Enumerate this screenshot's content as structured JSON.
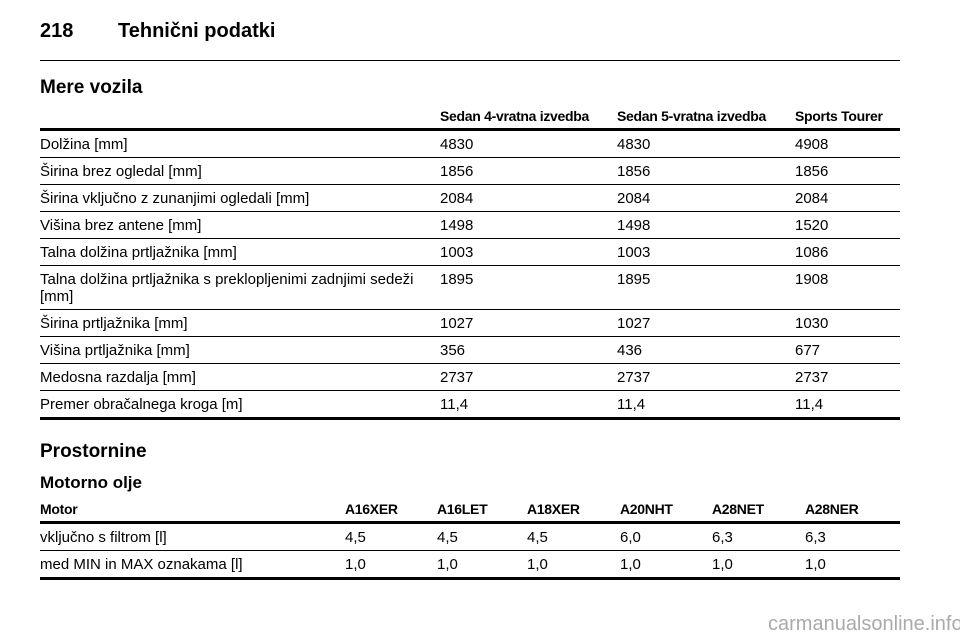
{
  "header": {
    "page_number": "218",
    "title": "Tehnični podatki"
  },
  "vehicle_dimensions": {
    "title": "Mere vozila",
    "columns": [
      "Sedan 4-vratna izvedba",
      "Sedan 5-vratna izvedba",
      "Sports Tourer"
    ],
    "rows": [
      {
        "label": "Dolžina [mm]",
        "values": [
          "4830",
          "4830",
          "4908"
        ]
      },
      {
        "label": "Širina brez ogledal [mm]",
        "values": [
          "1856",
          "1856",
          "1856"
        ]
      },
      {
        "label": "Širina vključno z zunanjimi ogledali [mm]",
        "values": [
          "2084",
          "2084",
          "2084"
        ]
      },
      {
        "label": "Višina brez antene [mm]",
        "values": [
          "1498",
          "1498",
          "1520"
        ]
      },
      {
        "label": "Talna dolžina prtljažnika [mm]",
        "values": [
          "1003",
          "1003",
          "1086"
        ]
      },
      {
        "label": "Talna dolžina prtljažnika s preklopljenimi zadnjimi sedeži [mm]",
        "values": [
          "1895",
          "1895",
          "1908"
        ]
      },
      {
        "label": "Širina prtljažnika [mm]",
        "values": [
          "1027",
          "1027",
          "1030"
        ]
      },
      {
        "label": "Višina prtljažnika [mm]",
        "values": [
          "356",
          "436",
          "677"
        ]
      },
      {
        "label": "Medosna razdalja [mm]",
        "values": [
          "2737",
          "2737",
          "2737"
        ]
      },
      {
        "label": "Premer obračalnega kroga [m]",
        "values": [
          "11,4",
          "11,4",
          "11,4"
        ]
      }
    ]
  },
  "capacities": {
    "title": "Prostornine",
    "subtitle": "Motorno olje",
    "columns": [
      "Motor",
      "A16XER",
      "A16LET",
      "A18XER",
      "A20NHT",
      "A28NET",
      "A28NER"
    ],
    "rows": [
      {
        "label": "vključno s filtrom [l]",
        "values": [
          "4,5",
          "4,5",
          "4,5",
          "6,0",
          "6,3",
          "6,3"
        ]
      },
      {
        "label": "med MIN in MAX oznakama [l]",
        "values": [
          "1,0",
          "1,0",
          "1,0",
          "1,0",
          "1,0",
          "1,0"
        ]
      }
    ]
  },
  "watermark": "carmanualsonline.info"
}
